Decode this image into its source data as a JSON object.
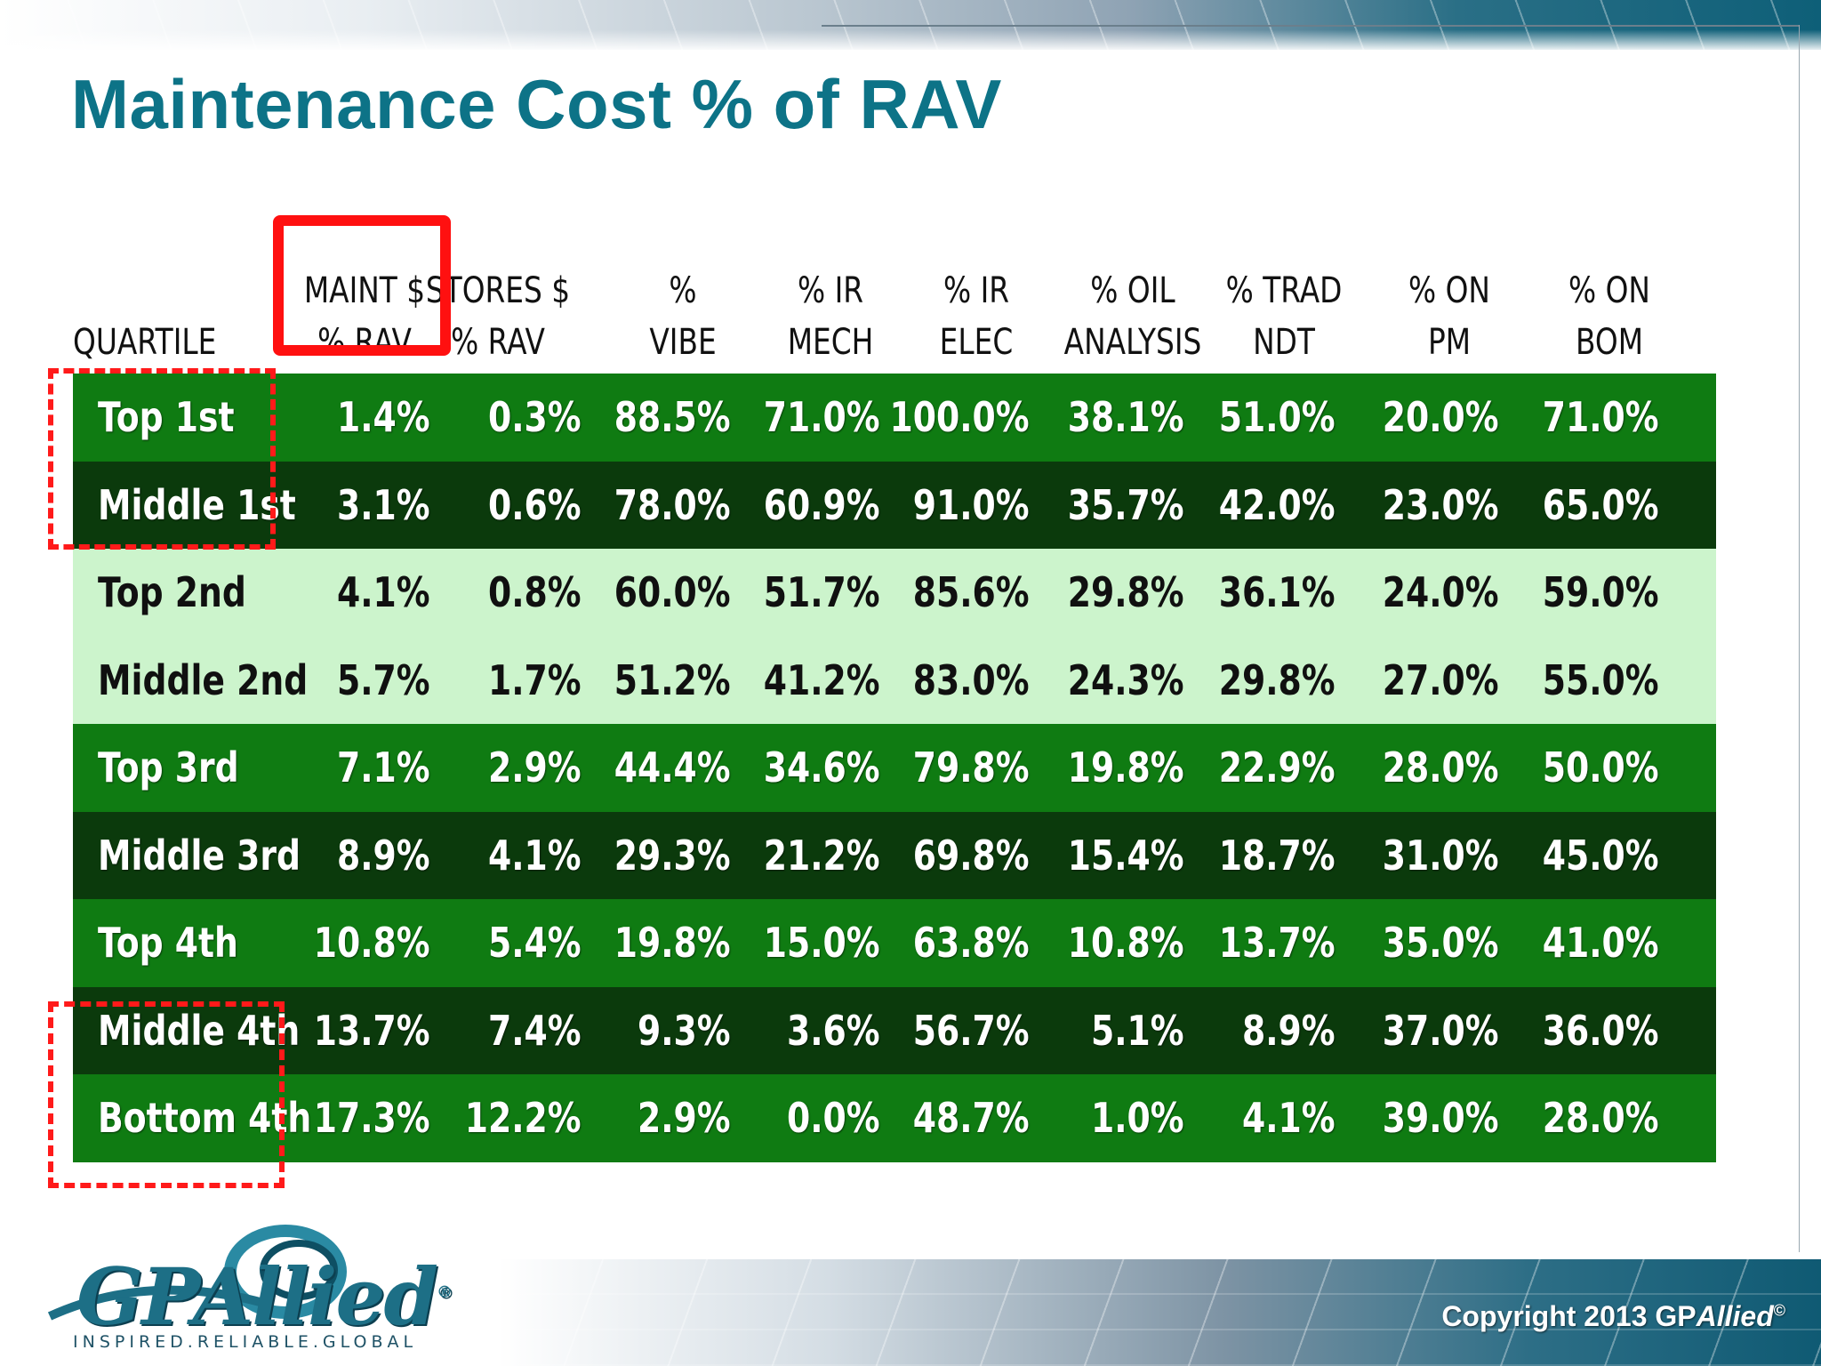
{
  "title": "Maintenance Cost % of RAV",
  "table": {
    "headers": [
      {
        "line1": "",
        "line2": "QUARTILE"
      },
      {
        "line1": "MAINT $",
        "line2": "% RAV"
      },
      {
        "line1": "STORES $",
        "line2": "% RAV"
      },
      {
        "line1": "%",
        "line2": "VIBE"
      },
      {
        "line1": "% IR",
        "line2": "MECH"
      },
      {
        "line1": "% IR",
        "line2": "ELEC"
      },
      {
        "line1": "% OIL",
        "line2": "ANALYSIS"
      },
      {
        "line1": "% TRAD",
        "line2": "NDT"
      },
      {
        "line1": "% ON",
        "line2": "PM"
      },
      {
        "line1": "% ON",
        "line2": "BOM"
      }
    ],
    "rows": [
      {
        "style": "green",
        "cells": [
          "Top 1st",
          "1.4%",
          "0.3%",
          "88.5%",
          "71.0%",
          "100.0%",
          "38.1%",
          "51.0%",
          "20.0%",
          "71.0%"
        ]
      },
      {
        "style": "dark",
        "cells": [
          "Middle 1st",
          "3.1%",
          "0.6%",
          "78.0%",
          "60.9%",
          "91.0%",
          "35.7%",
          "42.0%",
          "23.0%",
          "65.0%"
        ]
      },
      {
        "style": "light",
        "cells": [
          "Top 2nd",
          "4.1%",
          "0.8%",
          "60.0%",
          "51.7%",
          "85.6%",
          "29.8%",
          "36.1%",
          "24.0%",
          "59.0%"
        ]
      },
      {
        "style": "light",
        "cells": [
          "Middle 2nd",
          "5.7%",
          "1.7%",
          "51.2%",
          "41.2%",
          "83.0%",
          "24.3%",
          "29.8%",
          "27.0%",
          "55.0%"
        ]
      },
      {
        "style": "green",
        "cells": [
          "Top 3rd",
          "7.1%",
          "2.9%",
          "44.4%",
          "34.6%",
          "79.8%",
          "19.8%",
          "22.9%",
          "28.0%",
          "50.0%"
        ]
      },
      {
        "style": "dark",
        "cells": [
          "Middle 3rd",
          "8.9%",
          "4.1%",
          "29.3%",
          "21.2%",
          "69.8%",
          "15.4%",
          "18.7%",
          "31.0%",
          "45.0%"
        ]
      },
      {
        "style": "green",
        "cells": [
          "Top 4th",
          "10.8%",
          "5.4%",
          "19.8%",
          "15.0%",
          "63.8%",
          "10.8%",
          "13.7%",
          "35.0%",
          "41.0%"
        ]
      },
      {
        "style": "dark",
        "cells": [
          "Middle 4th",
          "13.7%",
          "7.4%",
          "9.3%",
          "3.6%",
          "56.7%",
          "5.1%",
          "8.9%",
          "37.0%",
          "36.0%"
        ]
      },
      {
        "style": "green",
        "cells": [
          "Bottom 4th",
          "17.3%",
          "12.2%",
          "2.9%",
          "0.0%",
          "48.7%",
          "1.0%",
          "4.1%",
          "39.0%",
          "28.0%"
        ]
      }
    ]
  },
  "colors": {
    "title": "#0d7387",
    "row_green": "#0f7b12",
    "row_dark": "#0b3a0c",
    "row_light": "#ccf4cc",
    "highlight": "#ff1010"
  },
  "footer": {
    "copyright_prefix": "Copyright 2013 GP",
    "copyright_brand": "Allied",
    "copyright_mark": "©",
    "logo_word": "GPAllied",
    "logo_reg": "®",
    "logo_tagline": "INSPIRED.RELIABLE.GLOBAL"
  }
}
